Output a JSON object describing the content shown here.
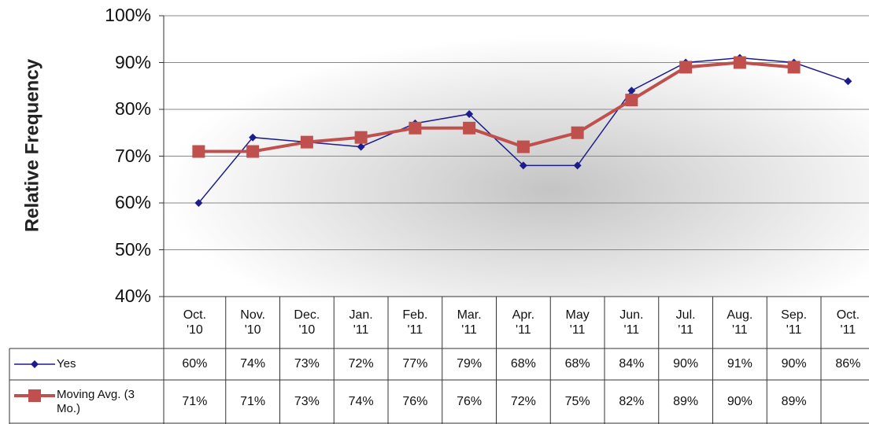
{
  "chart_data": {
    "type": "line",
    "y_label": "Relative Frequency",
    "categories": [
      "Oct. '10",
      "Nov. '10",
      "Dec. '10",
      "Jan. '11",
      "Feb. '11",
      "Mar. '11",
      "Apr. '11",
      "May '11",
      "Jun. '11",
      "Jul. '11",
      "Aug. '11",
      "Sep. '11",
      "Oct. '11"
    ],
    "series": [
      {
        "name": "Yes",
        "color": "#1c1c8c",
        "marker": "diamond",
        "values": [
          60,
          74,
          73,
          72,
          77,
          79,
          68,
          68,
          84,
          90,
          91,
          90,
          86
        ],
        "value_labels": [
          "60%",
          "74%",
          "73%",
          "72%",
          "77%",
          "79%",
          "68%",
          "68%",
          "84%",
          "90%",
          "91%",
          "90%",
          "86%"
        ]
      },
      {
        "name": "Moving Avg. (3 Mo.)",
        "color": "#c0504d",
        "marker": "square",
        "values": [
          71,
          71,
          73,
          74,
          76,
          76,
          72,
          75,
          82,
          89,
          90,
          89,
          null
        ],
        "value_labels": [
          "71%",
          "71%",
          "73%",
          "74%",
          "76%",
          "76%",
          "72%",
          "75%",
          "82%",
          "89%",
          "90%",
          "89%",
          null
        ]
      }
    ],
    "ylim": [
      40,
      100
    ],
    "yticks": [
      {
        "value": 40,
        "label": "40%"
      },
      {
        "value": 50,
        "label": "50%"
      },
      {
        "value": 60,
        "label": "60%"
      },
      {
        "value": 70,
        "label": "70%"
      },
      {
        "value": 80,
        "label": "80%"
      },
      {
        "value": 90,
        "label": "90%"
      },
      {
        "value": 100,
        "label": "100%"
      }
    ],
    "grid": true,
    "data_table": true
  }
}
